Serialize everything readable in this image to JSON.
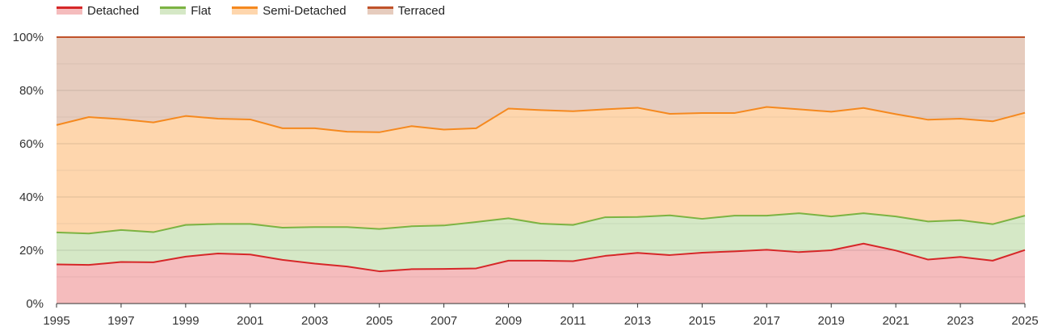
{
  "chart_data": {
    "type": "area",
    "stacked": "percent",
    "title": "",
    "xlabel": "",
    "ylabel": "",
    "x": [
      1995,
      1996,
      1997,
      1998,
      1999,
      2000,
      2001,
      2002,
      2003,
      2004,
      2005,
      2006,
      2007,
      2008,
      2009,
      2010,
      2011,
      2012,
      2013,
      2014,
      2015,
      2016,
      2017,
      2018,
      2019,
      2020,
      2021,
      2022,
      2023,
      2024,
      2025
    ],
    "x_ticks": [
      "1995",
      "1997",
      "1999",
      "2001",
      "2003",
      "2005",
      "2007",
      "2009",
      "2011",
      "2013",
      "2015",
      "2017",
      "2019",
      "2021",
      "2023",
      "2025"
    ],
    "y_ticks": [
      "0%",
      "20%",
      "40%",
      "60%",
      "80%",
      "100%"
    ],
    "ylim": [
      0,
      100
    ],
    "grid": true,
    "legend_position": "top-left",
    "series": [
      {
        "name": "Detached",
        "line_color": "#d62728",
        "fill_color": "#f5bcbd",
        "cumulative": [
          14.7,
          14.5,
          15.6,
          15.5,
          17.6,
          18.8,
          18.4,
          16.4,
          15.0,
          13.9,
          12.1,
          12.9,
          13.0,
          13.2,
          16.1,
          16.1,
          15.9,
          17.9,
          19.0,
          18.2,
          19.1,
          19.6,
          20.2,
          19.3,
          20.0,
          22.5,
          19.9,
          16.5,
          17.5,
          16.1,
          20.1
        ]
      },
      {
        "name": "Flat",
        "line_color": "#7cb342",
        "fill_color": "#d5e8c6",
        "cumulative": [
          26.7,
          26.3,
          27.6,
          26.8,
          29.5,
          29.9,
          29.9,
          28.5,
          28.7,
          28.7,
          28.0,
          29.0,
          29.3,
          30.6,
          32.0,
          30.0,
          29.5,
          32.4,
          32.5,
          33.1,
          31.8,
          33.0,
          33.0,
          33.9,
          32.7,
          33.9,
          32.7,
          30.8,
          31.3,
          29.8,
          33.0
        ]
      },
      {
        "name": "Semi-Detached",
        "line_color": "#f5891f",
        "fill_color": "#fed6ad",
        "cumulative": [
          67.0,
          70.0,
          69.2,
          68.0,
          70.4,
          69.4,
          69.1,
          65.8,
          65.8,
          64.5,
          64.3,
          66.6,
          65.3,
          65.8,
          73.2,
          72.6,
          72.2,
          72.9,
          73.5,
          71.2,
          71.5,
          71.5,
          73.8,
          72.9,
          72.0,
          73.4,
          71.1,
          69.0,
          69.4,
          68.4,
          71.6
        ]
      },
      {
        "name": "Terraced",
        "line_color": "#c0522a",
        "fill_color": "#e6ccbe",
        "cumulative": [
          100,
          100,
          100,
          100,
          100,
          100,
          100,
          100,
          100,
          100,
          100,
          100,
          100,
          100,
          100,
          100,
          100,
          100,
          100,
          100,
          100,
          100,
          100,
          100,
          100,
          100,
          100,
          100,
          100,
          100,
          100
        ]
      }
    ]
  }
}
